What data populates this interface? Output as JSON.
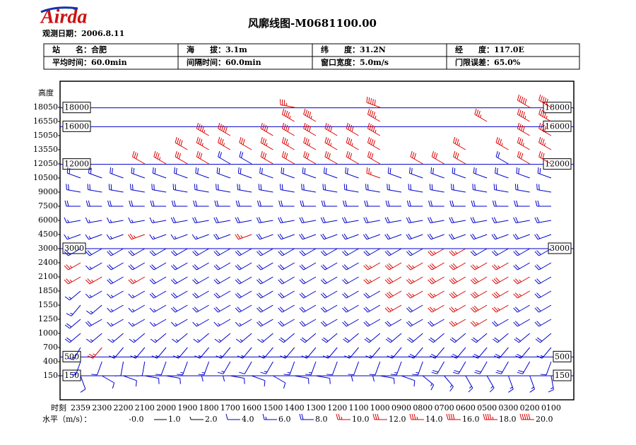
{
  "header": {
    "logo": "Airda",
    "date": "观测日期：2006.8.11",
    "title": "风廓线图-M0681100.00"
  },
  "info": {
    "rows": [
      [
        "站　　名：合肥",
        "海　　拔：3.1m",
        "纬　　度：31.2N",
        "经　　度：117.0E"
      ],
      [
        "平均时间：60.0min",
        "间隔时间：60.0min",
        "窗口宽度：5.0m/s",
        "门限误差：65.0%"
      ]
    ]
  },
  "chart_data": {
    "type": "wind_barb",
    "y_label": "高度",
    "x_label": "时刻",
    "levels": [
      150,
      400,
      700,
      1000,
      1250,
      1550,
      1850,
      2100,
      2400,
      3000,
      4500,
      6000,
      7500,
      9000,
      10500,
      12050,
      13550,
      15050,
      16550,
      18050
    ],
    "ref_lines": [
      18000,
      16000,
      12000,
      3000,
      500,
      150
    ],
    "ref_color": "#0000cc",
    "colors": {
      "calm": "#000000",
      "moderate": "#0000cc",
      "strong": "#dd0000"
    },
    "color_breaks": [
      4,
      10
    ],
    "legend_label": "水平（m/s）：",
    "legend": [
      {
        "value": 0,
        "label": "0.0"
      },
      {
        "value": 1,
        "label": "1.0"
      },
      {
        "value": 2,
        "label": "2.0"
      },
      {
        "value": 4,
        "label": "4.0"
      },
      {
        "value": 6,
        "label": "6.0"
      },
      {
        "value": 8,
        "label": "8.0"
      },
      {
        "value": 10,
        "label": "10.0"
      },
      {
        "value": 12,
        "label": "12.0"
      },
      {
        "value": 14,
        "label": "14.0"
      },
      {
        "value": 16,
        "label": "16.0"
      },
      {
        "value": 18,
        "label": "18.0"
      },
      {
        "value": 20,
        "label": "20.0"
      }
    ],
    "series": [
      {
        "name": "2359",
        "speed": [
          4,
          6,
          6,
          8,
          8,
          6,
          6,
          10,
          10,
          8,
          6,
          6,
          8,
          8,
          8,
          null,
          null,
          null,
          null,
          null
        ],
        "direction": [
          160,
          200,
          210,
          230,
          230,
          220,
          230,
          240,
          240,
          240,
          250,
          260,
          270,
          280,
          290,
          300,
          300,
          300,
          300,
          300
        ]
      },
      {
        "name": "2300",
        "speed": [
          4,
          4,
          10,
          6,
          8,
          6,
          6,
          10,
          6,
          8,
          6,
          6,
          8,
          8,
          8,
          null,
          null,
          null,
          null,
          null
        ],
        "direction": [
          120,
          200,
          220,
          230,
          240,
          230,
          240,
          240,
          240,
          240,
          250,
          260,
          270,
          280,
          290,
          300,
          300,
          300,
          300,
          300
        ]
      },
      {
        "name": "2200",
        "speed": [
          4,
          4,
          6,
          6,
          6,
          6,
          6,
          8,
          8,
          8,
          6,
          6,
          8,
          8,
          8,
          null,
          null,
          null,
          null,
          null
        ],
        "direction": [
          110,
          190,
          220,
          230,
          240,
          240,
          240,
          240,
          240,
          240,
          250,
          260,
          270,
          280,
          290,
          300,
          300,
          300,
          300,
          300
        ]
      },
      {
        "name": "2100",
        "speed": [
          4,
          4,
          6,
          6,
          6,
          6,
          6,
          10,
          8,
          8,
          10,
          6,
          8,
          8,
          8,
          12,
          null,
          null,
          null,
          null
        ],
        "direction": [
          100,
          190,
          220,
          230,
          240,
          240,
          240,
          240,
          240,
          240,
          250,
          260,
          270,
          280,
          290,
          300,
          300,
          300,
          300,
          300
        ]
      },
      {
        "name": "2000",
        "speed": [
          4,
          4,
          6,
          6,
          6,
          6,
          8,
          8,
          8,
          8,
          6,
          6,
          8,
          8,
          8,
          14,
          null,
          null,
          null,
          null
        ],
        "direction": [
          100,
          200,
          220,
          230,
          240,
          240,
          240,
          240,
          240,
          240,
          250,
          260,
          270,
          280,
          290,
          300,
          300,
          300,
          300,
          300
        ]
      },
      {
        "name": "1900",
        "speed": [
          4,
          6,
          6,
          6,
          6,
          8,
          8,
          8,
          8,
          8,
          6,
          8,
          8,
          8,
          8,
          12,
          16,
          null,
          null,
          null
        ],
        "direction": [
          90,
          200,
          220,
          230,
          240,
          240,
          240,
          240,
          240,
          240,
          250,
          260,
          270,
          280,
          290,
          300,
          300,
          300,
          300,
          300
        ]
      },
      {
        "name": "1800",
        "speed": [
          4,
          6,
          6,
          6,
          6,
          8,
          8,
          8,
          8,
          8,
          6,
          8,
          8,
          8,
          8,
          12,
          14,
          18,
          null,
          null
        ],
        "direction": [
          90,
          200,
          220,
          230,
          240,
          240,
          240,
          240,
          240,
          240,
          250,
          260,
          270,
          280,
          290,
          300,
          300,
          300,
          300,
          300
        ]
      },
      {
        "name": "1700",
        "speed": [
          4,
          6,
          6,
          6,
          6,
          8,
          8,
          8,
          8,
          8,
          8,
          8,
          8,
          8,
          8,
          8,
          14,
          20,
          null,
          null
        ],
        "direction": [
          100,
          210,
          220,
          230,
          240,
          240,
          240,
          240,
          240,
          240,
          250,
          260,
          270,
          280,
          290,
          300,
          300,
          300,
          300,
          300
        ]
      },
      {
        "name": "1600",
        "speed": [
          4,
          4,
          6,
          6,
          6,
          8,
          8,
          8,
          8,
          8,
          10,
          8,
          8,
          8,
          8,
          8,
          12,
          null,
          null,
          null
        ],
        "direction": [
          110,
          210,
          220,
          230,
          240,
          240,
          240,
          240,
          240,
          240,
          250,
          260,
          270,
          280,
          290,
          300,
          300,
          300,
          300,
          300
        ]
      },
      {
        "name": "1500",
        "speed": [
          4,
          6,
          6,
          6,
          8,
          8,
          8,
          8,
          8,
          8,
          8,
          8,
          8,
          8,
          8,
          12,
          14,
          16,
          null,
          null
        ],
        "direction": [
          120,
          210,
          220,
          230,
          240,
          240,
          240,
          240,
          240,
          240,
          250,
          260,
          270,
          280,
          290,
          300,
          300,
          300,
          300,
          300
        ]
      },
      {
        "name": "1400",
        "speed": [
          4,
          6,
          6,
          8,
          8,
          8,
          8,
          8,
          8,
          8,
          8,
          8,
          8,
          8,
          8,
          12,
          14,
          16,
          18,
          14
        ],
        "direction": [
          100,
          200,
          220,
          230,
          240,
          240,
          240,
          240,
          240,
          240,
          250,
          260,
          270,
          280,
          290,
          300,
          300,
          300,
          300,
          280
        ]
      },
      {
        "name": "1300",
        "speed": [
          4,
          6,
          6,
          8,
          8,
          8,
          8,
          8,
          8,
          8,
          8,
          8,
          8,
          8,
          8,
          12,
          14,
          16,
          18,
          null
        ],
        "direction": [
          100,
          200,
          220,
          230,
          240,
          240,
          240,
          240,
          240,
          240,
          250,
          260,
          270,
          280,
          290,
          300,
          300,
          300,
          300,
          300
        ]
      },
      {
        "name": "1200",
        "speed": [
          4,
          4,
          6,
          8,
          8,
          8,
          8,
          8,
          8,
          8,
          8,
          8,
          8,
          8,
          8,
          12,
          14,
          16,
          null,
          null
        ],
        "direction": [
          90,
          200,
          220,
          230,
          240,
          240,
          240,
          240,
          240,
          240,
          250,
          260,
          270,
          280,
          290,
          300,
          300,
          300,
          300,
          300
        ]
      },
      {
        "name": "1100",
        "speed": [
          4,
          4,
          6,
          8,
          8,
          8,
          8,
          8,
          8,
          8,
          8,
          8,
          8,
          8,
          8,
          12,
          14,
          16,
          null,
          null
        ],
        "direction": [
          90,
          200,
          220,
          230,
          240,
          240,
          240,
          240,
          240,
          240,
          250,
          260,
          270,
          280,
          290,
          300,
          300,
          300,
          300,
          300
        ]
      },
      {
        "name": "1000",
        "speed": [
          4,
          4,
          6,
          8,
          8,
          8,
          8,
          10,
          10,
          8,
          8,
          8,
          8,
          8,
          10,
          12,
          16,
          18,
          18,
          20
        ],
        "direction": [
          100,
          200,
          220,
          230,
          240,
          240,
          240,
          240,
          240,
          240,
          250,
          260,
          270,
          280,
          290,
          300,
          300,
          300,
          300,
          290
        ]
      },
      {
        "name": "0900",
        "speed": [
          4,
          6,
          6,
          8,
          8,
          10,
          12,
          12,
          12,
          8,
          8,
          8,
          8,
          8,
          8,
          null,
          null,
          null,
          null,
          null
        ],
        "direction": [
          110,
          200,
          220,
          230,
          240,
          240,
          240,
          240,
          240,
          240,
          250,
          260,
          270,
          280,
          290,
          300,
          300,
          300,
          300,
          300
        ]
      },
      {
        "name": "0800",
        "speed": [
          6,
          6,
          8,
          8,
          8,
          8,
          10,
          10,
          10,
          8,
          8,
          8,
          8,
          8,
          8,
          12,
          null,
          null,
          null,
          null
        ],
        "direction": [
          130,
          200,
          220,
          230,
          240,
          240,
          240,
          240,
          240,
          240,
          250,
          260,
          270,
          280,
          290,
          300,
          300,
          300,
          300,
          300
        ]
      },
      {
        "name": "0700",
        "speed": [
          6,
          8,
          8,
          8,
          8,
          10,
          10,
          12,
          12,
          10,
          8,
          8,
          8,
          8,
          8,
          12,
          null,
          null,
          null,
          null
        ],
        "direction": [
          140,
          210,
          220,
          230,
          240,
          240,
          240,
          240,
          240,
          240,
          250,
          260,
          270,
          280,
          290,
          300,
          300,
          300,
          300,
          300
        ]
      },
      {
        "name": "0600",
        "speed": [
          6,
          8,
          8,
          8,
          10,
          10,
          12,
          12,
          12,
          10,
          8,
          8,
          8,
          8,
          8,
          12,
          14,
          null,
          null,
          null
        ],
        "direction": [
          150,
          210,
          220,
          230,
          240,
          240,
          240,
          240,
          240,
          240,
          250,
          260,
          270,
          280,
          290,
          300,
          300,
          300,
          300,
          300
        ]
      },
      {
        "name": "0500",
        "speed": [
          6,
          8,
          8,
          8,
          10,
          12,
          12,
          12,
          10,
          8,
          8,
          8,
          8,
          8,
          8,
          null,
          null,
          null,
          14,
          null
        ],
        "direction": [
          150,
          210,
          220,
          230,
          240,
          240,
          240,
          240,
          240,
          240,
          250,
          260,
          270,
          280,
          290,
          300,
          300,
          300,
          300,
          300
        ]
      },
      {
        "name": "0300",
        "speed": [
          6,
          8,
          8,
          8,
          8,
          10,
          12,
          12,
          10,
          8,
          8,
          8,
          8,
          8,
          8,
          8,
          14,
          null,
          null,
          null
        ],
        "direction": [
          160,
          210,
          220,
          230,
          240,
          240,
          240,
          240,
          240,
          240,
          250,
          260,
          270,
          280,
          290,
          300,
          300,
          300,
          300,
          300
        ]
      },
      {
        "name": "0200",
        "speed": [
          6,
          8,
          8,
          8,
          8,
          8,
          10,
          10,
          8,
          8,
          8,
          8,
          8,
          8,
          8,
          12,
          14,
          16,
          18,
          20
        ],
        "direction": [
          160,
          210,
          220,
          230,
          240,
          240,
          240,
          240,
          240,
          240,
          250,
          260,
          270,
          280,
          290,
          300,
          300,
          300,
          300,
          300
        ]
      },
      {
        "name": "0100",
        "speed": [
          6,
          4,
          6,
          8,
          8,
          8,
          8,
          8,
          8,
          8,
          8,
          8,
          8,
          8,
          8,
          12,
          14,
          16,
          18,
          20
        ],
        "direction": [
          170,
          200,
          220,
          230,
          240,
          240,
          240,
          240,
          240,
          240,
          250,
          260,
          270,
          280,
          290,
          300,
          300,
          300,
          300,
          300
        ]
      }
    ]
  }
}
